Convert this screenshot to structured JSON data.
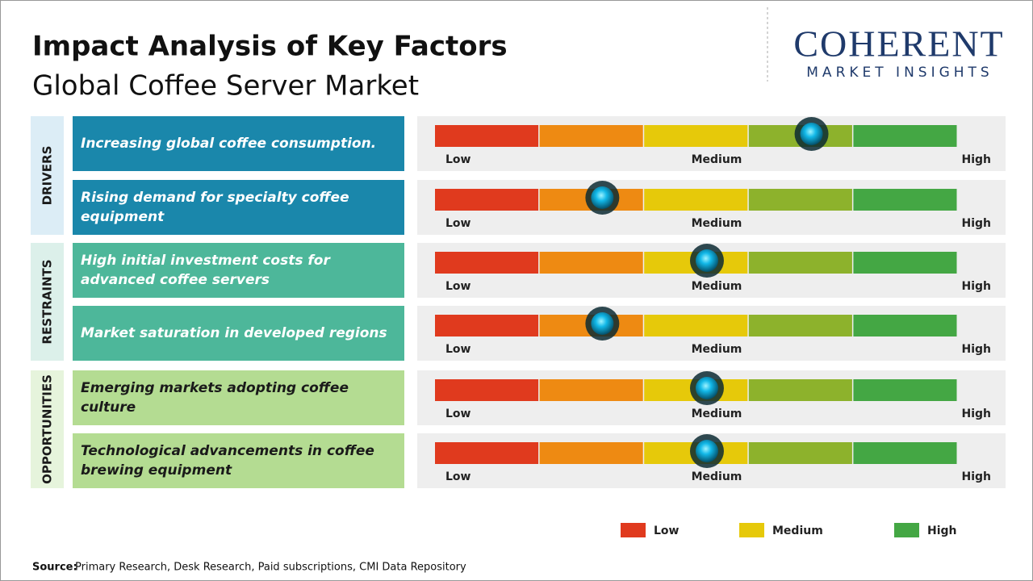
{
  "header": {
    "title": "Impact Analysis of Key Factors",
    "subtitle": "Global Coffee Server Market"
  },
  "logo": {
    "name": "COHERENT",
    "tagline": "MARKET INSIGHTS"
  },
  "scale_labels": [
    "Low",
    "Medium",
    "High"
  ],
  "segment_colors": [
    "#e03a1e",
    "#ee8a12",
    "#e6c90a",
    "#8db22c",
    "#44a744"
  ],
  "levels_max": 5,
  "groups": [
    {
      "label": "DRIVERS",
      "panel_color": "#dcedf6",
      "box_color": "#1a87ab",
      "text_color": "#ffffff",
      "factors": [
        {
          "text": "Increasing global coffee consumption.",
          "level": 3.6
        },
        {
          "text": "Rising demand for specialty coffee equipment",
          "level": 1.6
        }
      ]
    },
    {
      "label": "RESTRAINTS",
      "panel_color": "#dcf0ea",
      "box_color": "#4db79a",
      "text_color": "#ffffff",
      "factors": [
        {
          "text": "High initial investment costs for advanced coffee servers",
          "level": 2.6
        },
        {
          "text": "Market saturation in developed regions",
          "level": 1.6
        }
      ]
    },
    {
      "label": "OPPORTUNITIES",
      "panel_color": "#e6f4dc",
      "box_color": "#b4dc92",
      "text_color": "#1a1a1a",
      "factors": [
        {
          "text": "Emerging markets adopting coffee culture",
          "level": 2.6
        },
        {
          "text": "Technological advancements in coffee brewing equipment",
          "level": 2.6
        }
      ]
    }
  ],
  "legend": [
    {
      "label": "Low",
      "color": "#e03a1e"
    },
    {
      "label": "Medium",
      "color": "#e6c90a"
    },
    {
      "label": "High",
      "color": "#44a744"
    }
  ],
  "source": {
    "label": "Source:",
    "text": "Primary Research, Desk Research, Paid subscriptions, CMI Data Repository"
  }
}
